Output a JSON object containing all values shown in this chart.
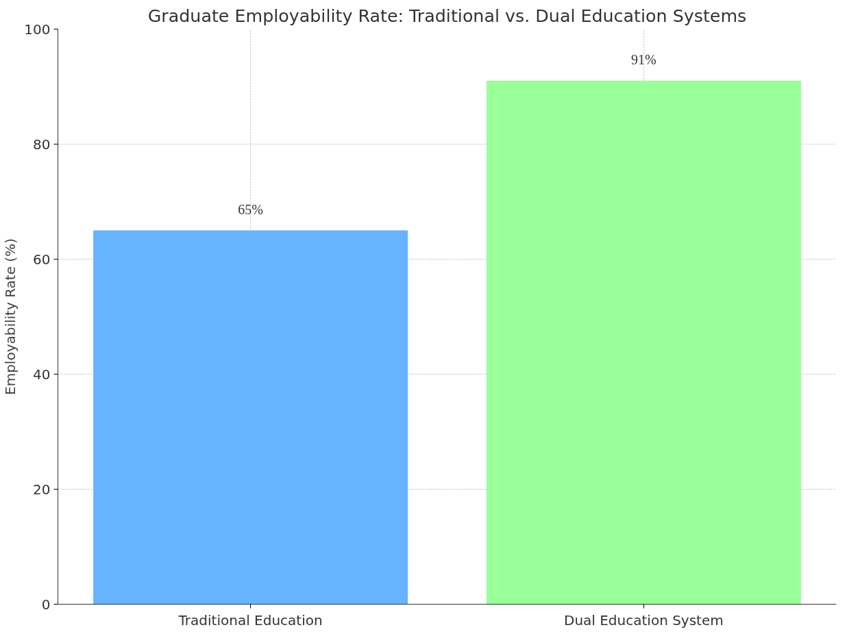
{
  "chart_data": {
    "type": "bar",
    "title": "Graduate Employability Rate: Traditional vs. Dual Education Systems",
    "ylabel": "Employability Rate (%)",
    "categories": [
      "Traditional Education",
      "Dual Education System"
    ],
    "values": [
      65,
      91
    ],
    "colors": [
      "#66b3ff",
      "#99ff99"
    ],
    "value_labels": [
      "65%",
      "91%"
    ],
    "ylim": [
      0,
      100
    ],
    "yticks": [
      0,
      20,
      40,
      60,
      80,
      100
    ],
    "grid": true
  }
}
